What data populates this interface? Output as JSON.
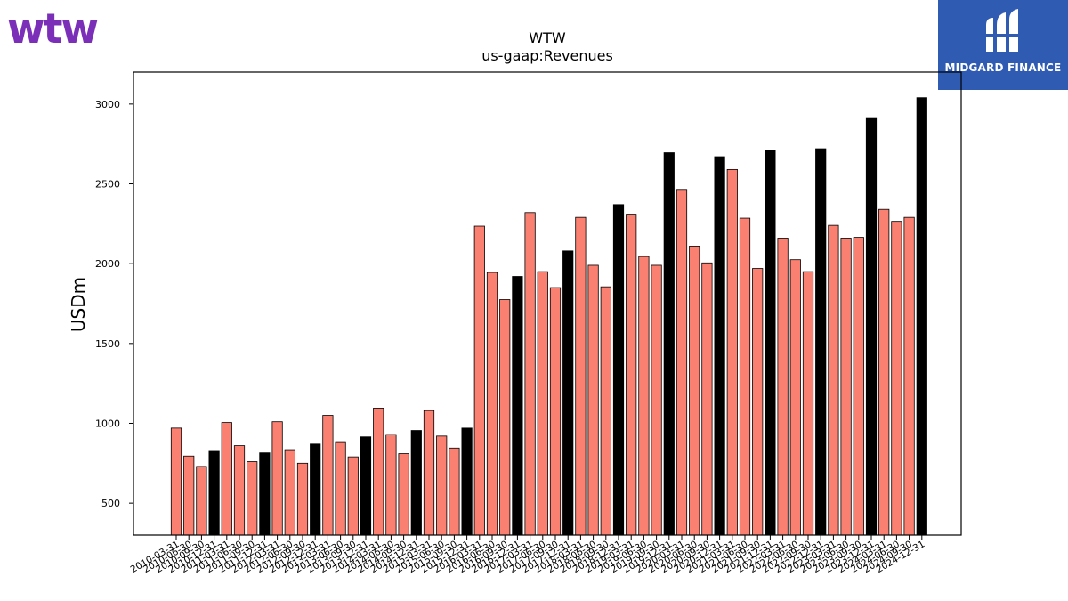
{
  "branding": {
    "company_logo_text": "wtw",
    "company_logo_color": "#7b2fb8",
    "badge_text": "MIDGARD FINANCE",
    "badge_color": "#2f5bb2"
  },
  "chart_data": {
    "type": "bar",
    "title": "WTW",
    "subtitle": "us-gaap:Revenues",
    "ylabel": "USDm",
    "xlabel": "",
    "ylim": [
      300,
      3200
    ],
    "yticks": [
      500,
      1000,
      1500,
      2000,
      2500,
      3000
    ],
    "colors": {
      "quarter": "#fa8072",
      "annual": "#000000"
    },
    "categories": [
      "2010-03-31",
      "2010-06-30",
      "2010-09-30",
      "2010-12-31",
      "2011-03-31",
      "2011-06-30",
      "2011-09-30",
      "2011-12-31",
      "2012-03-31",
      "2012-06-30",
      "2012-09-30",
      "2012-12-31",
      "2013-03-31",
      "2013-06-30",
      "2013-09-30",
      "2013-12-31",
      "2014-03-31",
      "2014-06-30",
      "2014-09-30",
      "2014-12-31",
      "2015-03-31",
      "2015-06-30",
      "2015-09-30",
      "2015-12-31",
      "2016-03-31",
      "2016-06-30",
      "2016-09-30",
      "2016-12-31",
      "2017-03-31",
      "2017-06-30",
      "2017-09-30",
      "2017-12-31",
      "2018-03-31",
      "2018-06-30",
      "2018-09-30",
      "2018-12-31",
      "2019-03-31",
      "2019-06-30",
      "2019-09-30",
      "2019-12-31",
      "2020-03-31",
      "2020-06-30",
      "2020-09-30",
      "2020-12-31",
      "2021-03-31",
      "2021-06-30",
      "2021-09-30",
      "2021-12-31",
      "2022-03-31",
      "2022-06-30",
      "2022-09-30",
      "2022-12-31",
      "2023-03-31",
      "2023-06-30",
      "2023-09-30",
      "2023-12-31",
      "2024-03-31",
      "2024-06-30",
      "2024-09-30",
      "2024-12-31"
    ],
    "values": [
      970,
      795,
      730,
      830,
      1005,
      860,
      760,
      815,
      1010,
      835,
      750,
      870,
      1050,
      885,
      790,
      915,
      1095,
      930,
      810,
      955,
      1080,
      920,
      845,
      970,
      2235,
      1945,
      1775,
      1920,
      2320,
      1950,
      1850,
      2080,
      2290,
      1990,
      1855,
      2370,
      2310,
      2045,
      1990,
      2695,
      2465,
      2110,
      2005,
      2670,
      2590,
      2285,
      1970,
      2710,
      2160,
      2025,
      1950,
      2720,
      2240,
      2160,
      2165,
      2915,
      2340,
      2265,
      2290,
      3040
    ],
    "annual_flags": [
      false,
      false,
      false,
      true,
      false,
      false,
      false,
      true,
      false,
      false,
      false,
      true,
      false,
      false,
      false,
      true,
      false,
      false,
      false,
      true,
      false,
      false,
      false,
      true,
      false,
      false,
      false,
      true,
      false,
      false,
      false,
      true,
      false,
      false,
      false,
      true,
      false,
      false,
      false,
      true,
      false,
      false,
      false,
      true,
      false,
      false,
      false,
      true,
      false,
      false,
      false,
      true,
      false,
      false,
      false,
      true,
      false,
      false,
      false,
      true
    ]
  }
}
